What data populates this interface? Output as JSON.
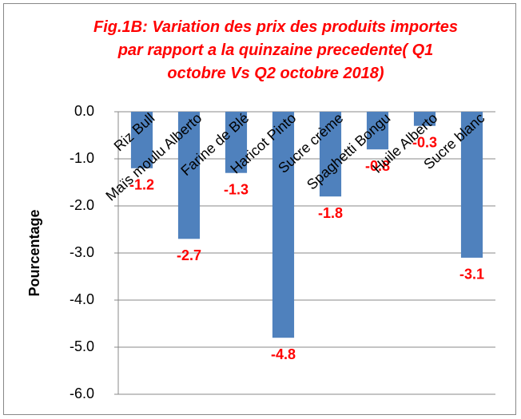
{
  "chart_data": {
    "type": "bar",
    "title": "Fig.1B: Variation des prix des produits importes par rapport a la quinzaine precedente( Q1 octobre Vs Q2 octobre 2018)",
    "y_label": "Pourcentage",
    "categories": [
      "Riz Bull",
      "Maïs moulu Alberto",
      "Farine de Blé",
      "Haricot Pinto",
      "Sucre crème",
      "Spaghetti Bongu",
      "Huile Alberto",
      "Sucre blanc"
    ],
    "values": [
      -1.2,
      -2.7,
      -1.3,
      -4.8,
      -1.8,
      -0.8,
      -0.3,
      -3.1
    ],
    "color": "#4f81bd",
    "label_color": "#ff0000",
    "ylim": [
      -6,
      0
    ],
    "yticks": [
      {
        "value": 0,
        "label": "0.0"
      },
      {
        "value": -1,
        "label": "-1.0"
      },
      {
        "value": -2,
        "label": "-2.0"
      },
      {
        "value": -3,
        "label": "-3.0"
      },
      {
        "value": -4,
        "label": "-4.0"
      },
      {
        "value": -5,
        "label": "-5.0"
      },
      {
        "value": -6,
        "label": "-6.0"
      }
    ],
    "grid": true
  }
}
